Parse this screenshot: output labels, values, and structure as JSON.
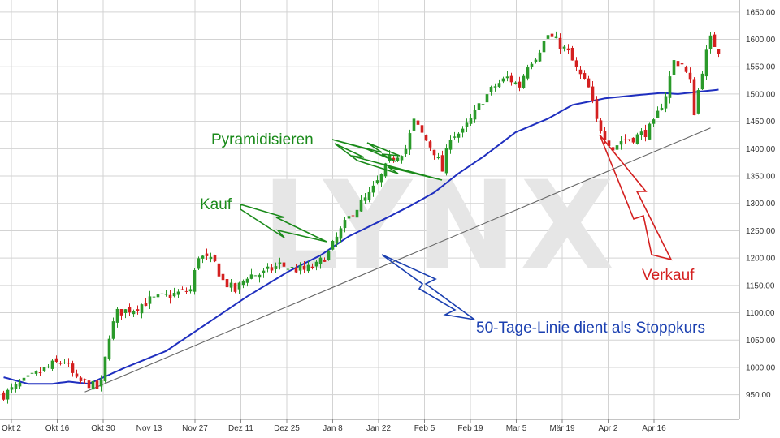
{
  "watermark": "LYNX",
  "colors": {
    "up": "#2a9a2a",
    "down": "#d42020",
    "ma": "#1f2fbf",
    "trend": "#666666",
    "grid": "#d3d3d3",
    "buy": "#1a8a1a",
    "sell": "#d42020",
    "stop": "#1a3fb0"
  },
  "chart_data": {
    "type": "candlestick",
    "y_range": [
      905,
      1672
    ],
    "y_ticks": [
      "950.00",
      "1000.00",
      "1050.00",
      "1100.00",
      "1150.00",
      "1200.00",
      "1250.00",
      "1300.00",
      "1350.00",
      "1400.00",
      "1450.00",
      "1500.00",
      "1550.00",
      "1600.00",
      "1650.00"
    ],
    "x_labels": [
      "Okt 2",
      "Okt 16",
      "Okt 30",
      "Nov 13",
      "Nov 27",
      "Dez 11",
      "Dez 25",
      "Jan 8",
      "Jan 22",
      "Feb 5",
      "Feb 19",
      "Mar 5",
      "Mär 19",
      "Apr 2",
      "Apr 16"
    ],
    "grid": true,
    "series": [
      {
        "name": "price",
        "kind": "candlestick",
        "waypoints": [
          [
            0,
            950
          ],
          [
            6,
            978
          ],
          [
            12,
            1005
          ],
          [
            15,
            1012
          ],
          [
            18,
            975
          ],
          [
            21,
            970
          ],
          [
            23,
            962
          ],
          [
            24,
            970
          ],
          [
            26,
            1060
          ],
          [
            28,
            1100
          ],
          [
            32,
            1108
          ],
          [
            36,
            1123
          ],
          [
            40,
            1130
          ],
          [
            46,
            1142
          ],
          [
            48,
            1205
          ],
          [
            52,
            1190
          ],
          [
            54,
            1158
          ],
          [
            57,
            1140
          ],
          [
            60,
            1168
          ],
          [
            64,
            1172
          ],
          [
            68,
            1188
          ],
          [
            71,
            1180
          ],
          [
            74,
            1178
          ],
          [
            77,
            1186
          ],
          [
            80,
            1210
          ],
          [
            83,
            1250
          ],
          [
            86,
            1285
          ],
          [
            90,
            1315
          ],
          [
            93,
            1350
          ],
          [
            95,
            1380
          ],
          [
            99,
            1400
          ],
          [
            101,
            1450
          ],
          [
            104,
            1415
          ],
          [
            106,
            1395
          ],
          [
            108,
            1360
          ],
          [
            110,
            1425
          ],
          [
            113,
            1430
          ],
          [
            116,
            1465
          ],
          [
            118,
            1490
          ],
          [
            121,
            1515
          ],
          [
            124,
            1530
          ],
          [
            127,
            1515
          ],
          [
            129,
            1555
          ],
          [
            131,
            1570
          ],
          [
            134,
            1608
          ],
          [
            137,
            1590
          ],
          [
            139,
            1575
          ],
          [
            141,
            1545
          ],
          [
            144,
            1510
          ],
          [
            146,
            1450
          ],
          [
            148,
            1425
          ],
          [
            150,
            1400
          ],
          [
            152,
            1415
          ],
          [
            155,
            1420
          ],
          [
            158,
            1430
          ],
          [
            160,
            1445
          ],
          [
            163,
            1500
          ],
          [
            165,
            1560
          ],
          [
            167,
            1555
          ],
          [
            169,
            1520
          ],
          [
            170,
            1468
          ],
          [
            172,
            1545
          ],
          [
            173,
            1575
          ],
          [
            174,
            1600
          ],
          [
            176,
            1580
          ]
        ]
      },
      {
        "name": "50-Tage-Linie",
        "kind": "line",
        "waypoints": [
          [
            0,
            982
          ],
          [
            6,
            970
          ],
          [
            12,
            970
          ],
          [
            16,
            974
          ],
          [
            21,
            970
          ],
          [
            30,
            1000
          ],
          [
            40,
            1030
          ],
          [
            50,
            1080
          ],
          [
            60,
            1130
          ],
          [
            70,
            1175
          ],
          [
            78,
            1205
          ],
          [
            85,
            1240
          ],
          [
            92,
            1265
          ],
          [
            100,
            1295
          ],
          [
            106,
            1320
          ],
          [
            112,
            1355
          ],
          [
            118,
            1385
          ],
          [
            126,
            1430
          ],
          [
            134,
            1455
          ],
          [
            140,
            1480
          ],
          [
            148,
            1492
          ],
          [
            156,
            1498
          ],
          [
            162,
            1502
          ],
          [
            166,
            1500
          ],
          [
            172,
            1505
          ],
          [
            176,
            1508
          ]
        ]
      },
      {
        "name": "trend",
        "kind": "line",
        "points": [
          [
            20,
            955
          ],
          [
            174,
            1438
          ]
        ]
      }
    ],
    "annotations": [
      {
        "text": "Pyramidisieren",
        "color": "buy"
      },
      {
        "text": "Kauf",
        "color": "buy"
      },
      {
        "text": "Verkauf",
        "color": "sell"
      },
      {
        "text": "50-Tage-Linie dient als Stoppkurs",
        "color": "stop"
      }
    ]
  }
}
